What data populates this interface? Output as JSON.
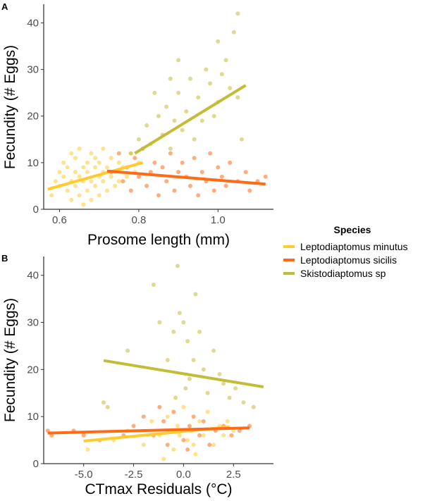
{
  "legend": {
    "title": "Species",
    "placement": "right",
    "entries": [
      {
        "label": "Leptodiaptomus minutus",
        "color": "#FFCB2E"
      },
      {
        "label": "Leptodiaptomus sicilis",
        "color": "#FF6A14"
      },
      {
        "label": "Skistodiaptomus sp",
        "color": "#C2BC36"
      }
    ]
  },
  "chart_data": [
    {
      "panel": "A",
      "type": "scatter",
      "xlabel": "Prosome length (mm)",
      "ylabel": "Fecundity (# Eggs)",
      "xlim": [
        0.56,
        1.14
      ],
      "ylim": [
        0,
        44
      ],
      "xticks": [
        0.6,
        0.8,
        1.0
      ],
      "xtick_labels": [
        "0.6",
        "0.8",
        "1.0"
      ],
      "yticks": [
        0,
        10,
        20,
        30,
        40
      ],
      "grid": false,
      "series": [
        {
          "name": "Leptodiaptomus minutus",
          "color": "#FFCB2E",
          "points": [
            [
              0.58,
              3
            ],
            [
              0.59,
              6
            ],
            [
              0.6,
              8
            ],
            [
              0.6,
              5
            ],
            [
              0.61,
              10
            ],
            [
              0.61,
              7
            ],
            [
              0.62,
              4
            ],
            [
              0.62,
              9
            ],
            [
              0.63,
              12
            ],
            [
              0.63,
              6
            ],
            [
              0.63,
              2
            ],
            [
              0.64,
              8
            ],
            [
              0.64,
              11
            ],
            [
              0.64,
              5
            ],
            [
              0.65,
              7
            ],
            [
              0.65,
              13
            ],
            [
              0.65,
              3
            ],
            [
              0.66,
              9
            ],
            [
              0.66,
              6
            ],
            [
              0.66,
              1
            ],
            [
              0.67,
              10
            ],
            [
              0.67,
              4
            ],
            [
              0.67,
              8
            ],
            [
              0.68,
              12
            ],
            [
              0.68,
              6
            ],
            [
              0.68,
              2
            ],
            [
              0.69,
              9
            ],
            [
              0.69,
              5
            ],
            [
              0.69,
              11
            ],
            [
              0.7,
              7
            ],
            [
              0.7,
              3
            ],
            [
              0.7,
              10
            ],
            [
              0.71,
              6
            ],
            [
              0.71,
              13
            ],
            [
              0.71,
              8
            ],
            [
              0.72,
              4
            ],
            [
              0.72,
              9
            ],
            [
              0.73,
              7
            ],
            [
              0.73,
              11
            ],
            [
              0.74,
              5
            ],
            [
              0.74,
              8
            ],
            [
              0.75,
              10
            ],
            [
              0.75,
              6
            ],
            [
              0.76,
              9
            ],
            [
              0.77,
              7
            ],
            [
              0.78,
              12
            ],
            [
              0.79,
              8
            ],
            [
              0.8,
              10
            ]
          ],
          "trend": {
            "x": [
              0.57,
              0.81
            ],
            "y": [
              4.3,
              10.0
            ]
          }
        },
        {
          "name": "Leptodiaptomus sicilis",
          "color": "#FF6A14",
          "points": [
            [
              0.73,
              8
            ],
            [
              0.75,
              12
            ],
            [
              0.76,
              6
            ],
            [
              0.77,
              9
            ],
            [
              0.78,
              4
            ],
            [
              0.79,
              11
            ],
            [
              0.8,
              7
            ],
            [
              0.81,
              13
            ],
            [
              0.82,
              5
            ],
            [
              0.83,
              8
            ],
            [
              0.84,
              10
            ],
            [
              0.85,
              3
            ],
            [
              0.86,
              9
            ],
            [
              0.87,
              6
            ],
            [
              0.88,
              12
            ],
            [
              0.89,
              4
            ],
            [
              0.9,
              8
            ],
            [
              0.91,
              10
            ],
            [
              0.92,
              7
            ],
            [
              0.93,
              5
            ],
            [
              0.94,
              11
            ],
            [
              0.95,
              3
            ],
            [
              0.96,
              8
            ],
            [
              0.97,
              6
            ],
            [
              0.98,
              12
            ],
            [
              0.99,
              4
            ],
            [
              1.0,
              9
            ],
            [
              1.01,
              7
            ],
            [
              1.02,
              5
            ],
            [
              1.03,
              10
            ],
            [
              1.05,
              6
            ],
            [
              1.07,
              8
            ],
            [
              1.08,
              4
            ],
            [
              1.1,
              6
            ],
            [
              1.12,
              7
            ]
          ],
          "trend": {
            "x": [
              0.72,
              1.12
            ],
            "y": [
              8.2,
              5.4
            ]
          }
        },
        {
          "name": "Skistodiaptomus sp",
          "color": "#C2BC36",
          "points": [
            [
              0.78,
              12
            ],
            [
              0.8,
              15
            ],
            [
              0.82,
              18
            ],
            [
              0.83,
              14
            ],
            [
              0.85,
              20
            ],
            [
              0.86,
              16
            ],
            [
              0.87,
              22
            ],
            [
              0.88,
              13
            ],
            [
              0.89,
              19
            ],
            [
              0.9,
              25
            ],
            [
              0.9,
              32
            ],
            [
              0.91,
              17
            ],
            [
              0.92,
              21
            ],
            [
              0.93,
              28
            ],
            [
              0.94,
              15
            ],
            [
              0.95,
              24
            ],
            [
              0.96,
              19
            ],
            [
              0.97,
              30
            ],
            [
              0.98,
              27
            ],
            [
              0.99,
              20
            ],
            [
              1.0,
              36
            ],
            [
              1.0,
              23
            ],
            [
              1.01,
              29
            ],
            [
              1.02,
              32
            ],
            [
              1.03,
              26
            ],
            [
              1.04,
              38
            ],
            [
              1.05,
              24
            ],
            [
              1.05,
              42
            ],
            [
              1.06,
              15
            ],
            [
              0.84,
              25
            ],
            [
              0.88,
              28
            ]
          ],
          "trend": {
            "x": [
              0.79,
              1.07
            ],
            "y": [
              12.0,
              26.6
            ]
          }
        }
      ]
    },
    {
      "panel": "B",
      "type": "scatter",
      "xlabel": "CTmax Residuals (°C)",
      "ylabel": "Fecundity (# Eggs)",
      "xlim": [
        -7.0,
        4.5
      ],
      "ylim": [
        0,
        44
      ],
      "xticks": [
        -5.0,
        -2.5,
        0.0,
        2.5
      ],
      "xtick_labels": [
        "-5.0",
        "-2.5",
        "0.0",
        "2.5"
      ],
      "yticks": [
        0,
        10,
        20,
        30,
        40
      ],
      "grid": false,
      "series": [
        {
          "name": "Leptodiaptomus minutus",
          "color": "#FFCB2E",
          "points": [
            [
              -4.8,
              3
            ],
            [
              -3.5,
              5
            ],
            [
              -2.8,
              7
            ],
            [
              -2.0,
              4
            ],
            [
              -1.6,
              9
            ],
            [
              -1.2,
              6
            ],
            [
              -0.8,
              10
            ],
            [
              -0.5,
              3
            ],
            [
              -0.3,
              8
            ],
            [
              0.0,
              12
            ],
            [
              0.2,
              5
            ],
            [
              0.4,
              7
            ],
            [
              0.6,
              2
            ],
            [
              0.8,
              9
            ],
            [
              1.0,
              6
            ],
            [
              1.2,
              11
            ],
            [
              1.5,
              4
            ],
            [
              1.8,
              8
            ],
            [
              2.0,
              6
            ],
            [
              2.2,
              9
            ],
            [
              2.5,
              7
            ],
            [
              -1.0,
              1
            ],
            [
              0.5,
              4
            ],
            [
              -0.2,
              6
            ]
          ],
          "trend": {
            "x": [
              -5.0,
              2.3
            ],
            "y": [
              4.8,
              7.8
            ]
          }
        },
        {
          "name": "Leptodiaptomus sicilis",
          "color": "#FF6A14",
          "points": [
            [
              -6.8,
              7
            ],
            [
              -6.6,
              6
            ],
            [
              -5.5,
              7
            ],
            [
              -5.0,
              6
            ],
            [
              -4.2,
              5
            ],
            [
              -3.0,
              6
            ],
            [
              -2.5,
              8
            ],
            [
              -2.0,
              10
            ],
            [
              -1.5,
              6
            ],
            [
              -1.0,
              9
            ],
            [
              -0.8,
              4
            ],
            [
              -0.5,
              11
            ],
            [
              -0.3,
              7
            ],
            [
              0.0,
              5
            ],
            [
              0.3,
              8
            ],
            [
              0.5,
              10
            ],
            [
              0.8,
              6
            ],
            [
              1.0,
              9
            ],
            [
              1.3,
              4
            ],
            [
              1.6,
              7
            ],
            [
              2.0,
              8
            ],
            [
              2.4,
              6
            ],
            [
              2.8,
              7
            ],
            [
              3.3,
              8
            ],
            [
              -1.2,
              12
            ],
            [
              0.2,
              3
            ]
          ],
          "trend": {
            "x": [
              -6.8,
              3.3
            ],
            "y": [
              6.5,
              7.6
            ]
          }
        },
        {
          "name": "Skistodiaptomus sp",
          "color": "#C2BC36",
          "points": [
            [
              -4.0,
              13
            ],
            [
              -3.8,
              12
            ],
            [
              -2.8,
              24
            ],
            [
              -1.5,
              38
            ],
            [
              -1.2,
              30
            ],
            [
              -0.8,
              22
            ],
            [
              -0.5,
              28
            ],
            [
              -0.3,
              42
            ],
            [
              -0.2,
              32
            ],
            [
              0.0,
              30
            ],
            [
              0.2,
              26
            ],
            [
              0.3,
              18
            ],
            [
              0.5,
              22
            ],
            [
              0.6,
              36
            ],
            [
              0.8,
              28
            ],
            [
              1.0,
              20
            ],
            [
              1.2,
              15
            ],
            [
              1.5,
              24
            ],
            [
              1.8,
              19
            ],
            [
              2.0,
              17
            ],
            [
              2.3,
              14
            ],
            [
              2.6,
              16
            ],
            [
              3.0,
              13
            ],
            [
              3.5,
              12
            ],
            [
              0.1,
              16
            ],
            [
              -0.4,
              14
            ]
          ],
          "trend": {
            "x": [
              -4.0,
              4.0
            ],
            "y": [
              21.9,
              16.3
            ]
          }
        }
      ]
    }
  ]
}
